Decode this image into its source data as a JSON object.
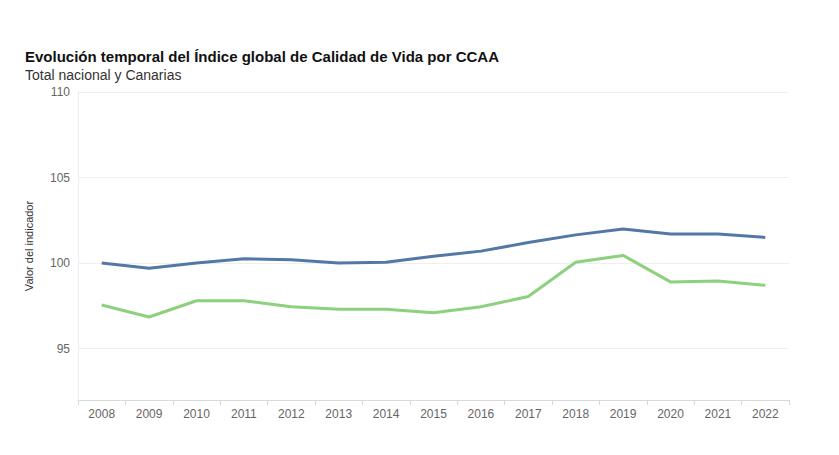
{
  "chart_data": {
    "type": "line",
    "title": "Evolución temporal del Índice global de Calidad de Vida por CCAA",
    "subtitle": "Total nacional y Canarias",
    "y_label": "Valor del indicador",
    "categories": [
      "2008",
      "2009",
      "2010",
      "2011",
      "2012",
      "2013",
      "2014",
      "2015",
      "2016",
      "2017",
      "2018",
      "2019",
      "2020",
      "2021",
      "2022"
    ],
    "series": [
      {
        "color": "#5378a7",
        "values": [
          100.0,
          99.7,
          100.0,
          100.25,
          100.2,
          100.0,
          100.05,
          100.4,
          100.7,
          101.2,
          101.65,
          102.0,
          101.7,
          101.7,
          101.5
        ]
      },
      {
        "color": "#8dd07e",
        "values": [
          97.55,
          96.85,
          97.8,
          97.8,
          97.45,
          97.3,
          97.3,
          97.1,
          97.45,
          98.05,
          100.05,
          100.45,
          98.9,
          98.95,
          98.7
        ]
      }
    ],
    "ylim": [
      92,
      110
    ],
    "yticks": [
      95,
      100,
      105,
      110
    ],
    "grid": true
  }
}
